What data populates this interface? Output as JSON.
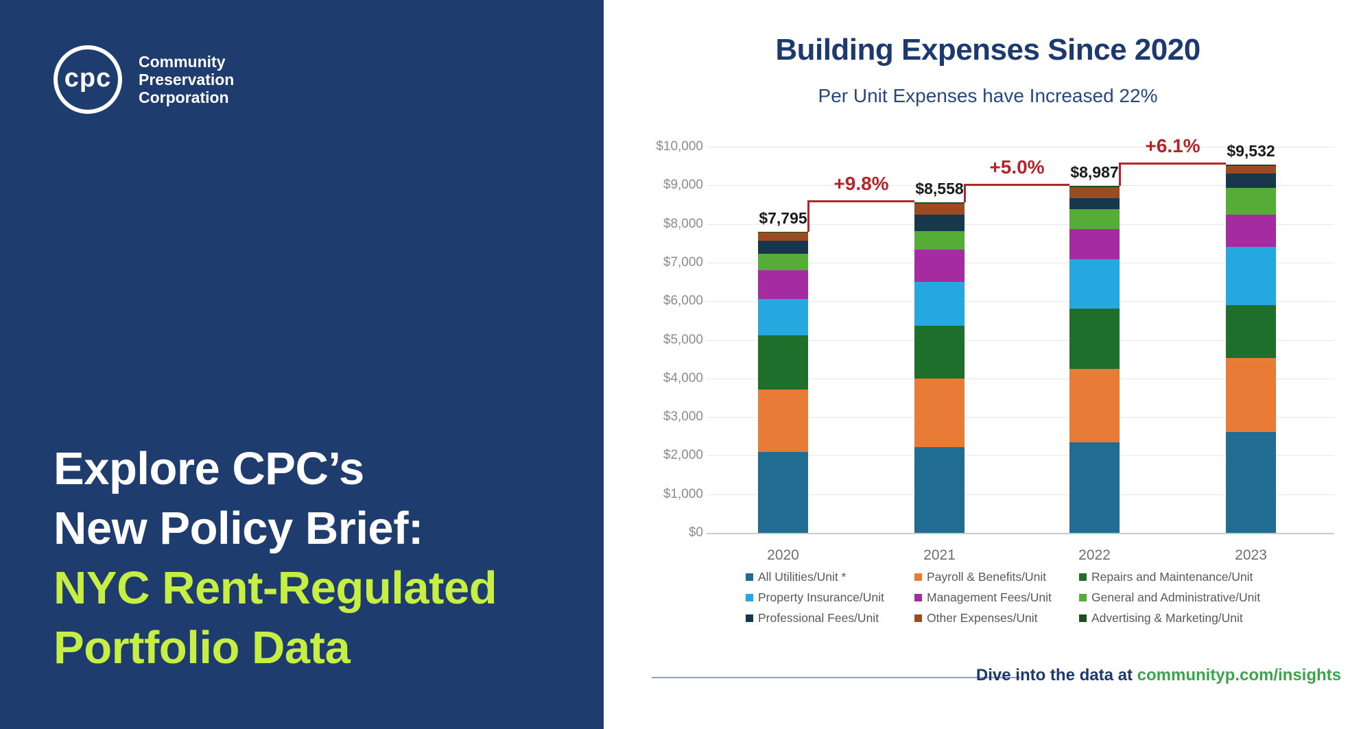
{
  "left_panel": {
    "background": "#1e3c6d",
    "logo": {
      "monogram": "cpc",
      "org_lines": [
        "Community",
        "Preservation",
        "Corporation"
      ]
    },
    "headline": {
      "lines": [
        {
          "text": "Explore CPC’s",
          "color": "#ffffff"
        },
        {
          "text": "New Policy Brief:",
          "color": "#ffffff"
        },
        {
          "text": "NYC Rent-Regulated",
          "color": "#c7ee43"
        },
        {
          "text": "Portfolio Data",
          "color": "#c7ee43"
        }
      ]
    }
  },
  "chart": {
    "title": "Building Expenses Since 2020",
    "subtitle": "Per Unit Expenses have Increased 22%"
  },
  "chart_data": {
    "type": "bar",
    "stacked": true,
    "title": "Building Expenses Since 2020",
    "subtitle": "Per Unit Expenses have Increased 22%",
    "categories": [
      "2020",
      "2021",
      "2022",
      "2023"
    ],
    "series": [
      {
        "name": "All Utilities/Unit *",
        "color": "#216d92",
        "values": [
          2100,
          2223,
          2337,
          2614
        ]
      },
      {
        "name": "Payroll & Benefits/Unit",
        "color": "#e87b35",
        "values": [
          1620,
          1765,
          1915,
          1918
        ]
      },
      {
        "name": "Repairs and Maintenance/Unit",
        "color": "#1e6f2b",
        "values": [
          1395,
          1380,
          1555,
          1364
        ]
      },
      {
        "name": "Property Insurance/Unit",
        "color": "#25a8e0",
        "values": [
          950,
          1125,
          1279,
          1506
        ]
      },
      {
        "name": "Management Fees/Unit",
        "color": "#a42ba0",
        "values": [
          745,
          835,
          781,
          838
        ]
      },
      {
        "name": "General and Administrative/Unit",
        "color": "#55ad38",
        "values": [
          420,
          480,
          512,
          696
        ]
      },
      {
        "name": "Professional Fees/Unit",
        "color": "#17374d",
        "values": [
          330,
          430,
          297,
          369
        ]
      },
      {
        "name": "Other Expenses/Unit",
        "color": "#9c4a1f",
        "values": [
          215,
          280,
          276,
          197
        ]
      },
      {
        "name": "Advertising & Marketing/Unit",
        "color": "#1f4d23",
        "values": [
          20,
          40,
          35,
          30
        ]
      }
    ],
    "totals_values": [
      7795,
      8558,
      8987,
      9532
    ],
    "totals_labels": [
      "$7,795",
      "$8,558",
      "$8,987",
      "$9,532"
    ],
    "pct_changes": [
      "+9.8%",
      "+5.0%",
      "+6.1%"
    ],
    "y_ticks": [
      "$0",
      "$1,000",
      "$2,000",
      "$3,000",
      "$4,000",
      "$5,000",
      "$6,000",
      "$7,000",
      "$8,000",
      "$9,000",
      "$10,000"
    ],
    "ylim": [
      0,
      10000
    ],
    "grid": true,
    "legend_position": "bottom"
  },
  "footer": {
    "prefix": "Dive into the data at ",
    "link": "communityp.com/insights"
  }
}
